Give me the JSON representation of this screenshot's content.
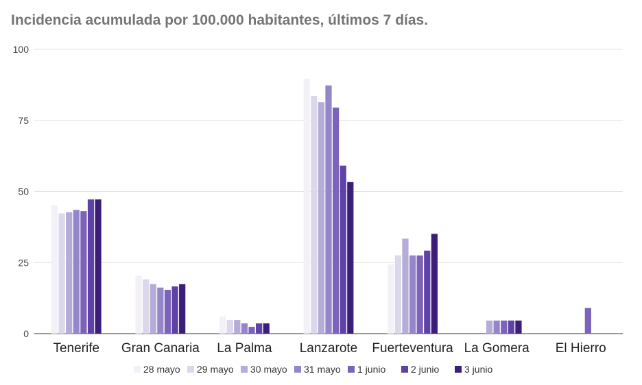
{
  "chart_data": {
    "type": "bar",
    "title": "Incidencia acumulada por 100.000 habitantes, últimos 7 días.",
    "xlabel": "",
    "ylabel": "",
    "ylim": [
      0,
      100
    ],
    "yticks": [
      "0",
      "25",
      "50",
      "75",
      "100"
    ],
    "grid": true,
    "legend_position": "bottom",
    "categories": [
      "Tenerife",
      "Gran Canaria",
      "La Palma",
      "Lanzarote",
      "Fuerteventura",
      "La Gomera",
      "El Hierro"
    ],
    "series": [
      {
        "name": "28 mayo",
        "color": "#f3f1f7",
        "values": [
          45.2,
          20.3,
          6.0,
          89.7,
          24.3,
          0,
          0
        ]
      },
      {
        "name": "29 mayo",
        "color": "#dcd8ec",
        "values": [
          42.3,
          19.1,
          4.8,
          83.6,
          27.5,
          0,
          0
        ]
      },
      {
        "name": "30 mayo",
        "color": "#b6acd8",
        "values": [
          42.7,
          17.4,
          4.8,
          81.4,
          33.4,
          4.6,
          0
        ]
      },
      {
        "name": "31 mayo",
        "color": "#9586c9",
        "values": [
          43.5,
          16.2,
          3.6,
          87.3,
          27.5,
          4.6,
          0
        ]
      },
      {
        "name": "1 junio",
        "color": "#7b63b9",
        "values": [
          43.1,
          15.4,
          2.4,
          79.5,
          27.5,
          4.6,
          9.0
        ]
      },
      {
        "name": "2 junio",
        "color": "#5e42a6",
        "values": [
          47.2,
          16.6,
          3.6,
          59.1,
          29.2,
          4.6,
          0
        ]
      },
      {
        "name": "3 junio",
        "color": "#3a1e7a",
        "values": [
          47.2,
          17.4,
          3.6,
          53.3,
          35.1,
          4.6,
          0
        ]
      }
    ]
  }
}
